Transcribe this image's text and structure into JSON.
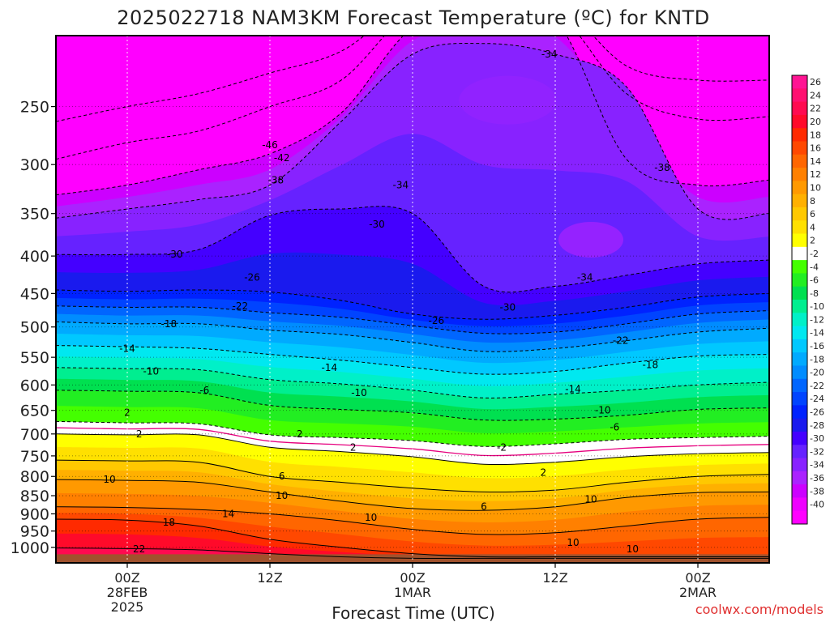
{
  "chart_data": {
    "type": "heatmap",
    "title": "2025022718 NAM3KM Forecast Temperature (ºC) for KNTD",
    "xlabel": "Forecast Time (UTC)",
    "ylabel": "",
    "credit": "coolwx.com/models",
    "y_scale": "log (pressure, hPa, inverted)",
    "ylim": [
      1050,
      200
    ],
    "yticks": [
      "250",
      "300",
      "350",
      "400",
      "450",
      "500",
      "550",
      "600",
      "650",
      "700",
      "750",
      "800",
      "850",
      "900",
      "950",
      "1000"
    ],
    "ytick_values": [
      250,
      300,
      350,
      400,
      450,
      500,
      550,
      600,
      650,
      700,
      750,
      800,
      850,
      900,
      950,
      1000
    ],
    "x_unit": "hours since 2025-02-27 18Z",
    "xlim": [
      0,
      60
    ],
    "xticks": [
      {
        "hour": 6,
        "lines": [
          "00Z",
          "28FEB",
          "2025"
        ]
      },
      {
        "hour": 18,
        "lines": [
          "12Z",
          "",
          ""
        ]
      },
      {
        "hour": 30,
        "lines": [
          "00Z",
          "1MAR",
          ""
        ]
      },
      {
        "hour": 42,
        "lines": [
          "12Z",
          "",
          ""
        ]
      },
      {
        "hour": 54,
        "lines": [
          "00Z",
          "2MAR",
          ""
        ]
      }
    ],
    "colorbar": {
      "labels": [
        "26",
        "24",
        "22",
        "20",
        "18",
        "16",
        "14",
        "12",
        "10",
        "8",
        "6",
        "4",
        "2",
        "-2",
        "-4",
        "-6",
        "-8",
        "-10",
        "-12",
        "-14",
        "-16",
        "-18",
        "-20",
        "-22",
        "-24",
        "-26",
        "-28",
        "-30",
        "-32",
        "-34",
        "-36",
        "-38",
        "-40"
      ],
      "colors": [
        "#ff1493",
        "#ff1070",
        "#ff0a50",
        "#ff0a2a",
        "#ff2a00",
        "#ff4800",
        "#ff6600",
        "#ff8000",
        "#ff9900",
        "#ffb000",
        "#ffc800",
        "#ffe000",
        "#ffff00",
        "#ffffff",
        "#44ff00",
        "#22ee22",
        "#00e050",
        "#00ee90",
        "#00f0c8",
        "#00e8f0",
        "#00c8ff",
        "#00aaff",
        "#008cff",
        "#0066ff",
        "#0044ff",
        "#0022ff",
        "#1a1aee",
        "#4400ff",
        "#6622ff",
        "#8822ff",
        "#aa22ff",
        "#cc00ff",
        "#ee00ff",
        "#ff00ff"
      ]
    },
    "time_hours": [
      0,
      6,
      12,
      18,
      24,
      30,
      36,
      42,
      48,
      54,
      60
    ],
    "isotherm_pressure_hPa": {
      "22": [
        1002,
        1004,
        1008,
        1020,
        1030,
        1035,
        1035,
        1035,
        1035,
        1035,
        1035
      ],
      "18": [
        915,
        918,
        935,
        975,
        1000,
        1020,
        1030,
        1030,
        1030,
        1030,
        1030
      ],
      "14": [
        880,
        882,
        888,
        900,
        920,
        945,
        960,
        955,
        935,
        915,
        910
      ],
      "10": [
        808,
        810,
        815,
        840,
        865,
        885,
        890,
        880,
        855,
        842,
        840
      ],
      "6": [
        760,
        762,
        765,
        800,
        815,
        830,
        840,
        835,
        815,
        800,
        795
      ],
      "2": [
        700,
        702,
        702,
        730,
        740,
        752,
        770,
        765,
        752,
        745,
        742
      ],
      "-2": [
        673,
        676,
        678,
        702,
        708,
        715,
        728,
        722,
        712,
        708,
        705
      ],
      "-6": [
        610,
        612,
        615,
        640,
        648,
        655,
        670,
        668,
        660,
        648,
        645
      ],
      "-10": [
        568,
        570,
        572,
        590,
        598,
        610,
        625,
        618,
        610,
        600,
        595
      ],
      "-14": [
        530,
        532,
        535,
        545,
        555,
        568,
        580,
        575,
        560,
        548,
        545
      ],
      "-18": [
        492,
        495,
        495,
        505,
        512,
        525,
        540,
        535,
        522,
        508,
        502
      ],
      "-22": [
        468,
        470,
        470,
        478,
        485,
        498,
        510,
        508,
        495,
        480,
        475
      ],
      "-26": [
        445,
        447,
        445,
        448,
        460,
        480,
        488,
        482,
        470,
        455,
        450
      ],
      "-30": [
        398,
        398,
        392,
        352,
        345,
        350,
        440,
        440,
        425,
        410,
        405
      ],
      "-34": [
        355,
        345,
        335,
        320,
        262,
        212,
        205,
        212,
        235,
        345,
        350
      ],
      "-38": [
        330,
        320,
        305,
        290,
        255,
        195,
        185,
        190,
        295,
        320,
        315
      ],
      "-42": [
        295,
        280,
        270,
        250,
        230,
        185,
        180,
        185,
        240,
        260,
        258
      ],
      "-46": [
        262,
        250,
        240,
        225,
        210,
        180,
        180,
        180,
        220,
        230,
        230
      ]
    },
    "contour_labels": [
      {
        "text": "-34",
        "hour": 41.5,
        "p": 212
      },
      {
        "text": "-46",
        "hour": 18,
        "p": 282
      },
      {
        "text": "-42",
        "hour": 19,
        "p": 294
      },
      {
        "text": "-38",
        "hour": 18.5,
        "p": 315
      },
      {
        "text": "-38",
        "hour": 51,
        "p": 303
      },
      {
        "text": "-34",
        "hour": 29,
        "p": 320
      },
      {
        "text": "-30",
        "hour": 27,
        "p": 362
      },
      {
        "text": "-30",
        "hour": 10,
        "p": 398
      },
      {
        "text": "-26",
        "hour": 16.5,
        "p": 428
      },
      {
        "text": "-34",
        "hour": 44.5,
        "p": 428
      },
      {
        "text": "-22",
        "hour": 15.5,
        "p": 468
      },
      {
        "text": "-30",
        "hour": 38,
        "p": 470
      },
      {
        "text": "-26",
        "hour": 32,
        "p": 490
      },
      {
        "text": "-18",
        "hour": 9.5,
        "p": 495
      },
      {
        "text": "-22",
        "hour": 47.5,
        "p": 522
      },
      {
        "text": "-14",
        "hour": 6,
        "p": 535
      },
      {
        "text": "-14",
        "hour": 23,
        "p": 568
      },
      {
        "text": "-18",
        "hour": 50,
        "p": 563
      },
      {
        "text": "-10",
        "hour": 8,
        "p": 575
      },
      {
        "text": "-10",
        "hour": 25.5,
        "p": 615
      },
      {
        "text": "-14",
        "hour": 43.5,
        "p": 608
      },
      {
        "text": "-6",
        "hour": 12.5,
        "p": 610
      },
      {
        "text": "-10",
        "hour": 46,
        "p": 650
      },
      {
        "text": "2",
        "hour": 6,
        "p": 655
      },
      {
        "text": "-6",
        "hour": 47,
        "p": 685
      },
      {
        "text": "2",
        "hour": 7,
        "p": 700
      },
      {
        "text": "2",
        "hour": 20.5,
        "p": 700
      },
      {
        "text": "2",
        "hour": 25,
        "p": 730
      },
      {
        "text": "-2",
        "hour": 37.5,
        "p": 730
      },
      {
        "text": "2",
        "hour": 41,
        "p": 790
      },
      {
        "text": "10",
        "hour": 4.5,
        "p": 808
      },
      {
        "text": "6",
        "hour": 19,
        "p": 800
      },
      {
        "text": "10",
        "hour": 19,
        "p": 850
      },
      {
        "text": "6",
        "hour": 36,
        "p": 880
      },
      {
        "text": "14",
        "hour": 14.5,
        "p": 900
      },
      {
        "text": "10",
        "hour": 45,
        "p": 860
      },
      {
        "text": "10",
        "hour": 26.5,
        "p": 910
      },
      {
        "text": "18",
        "hour": 9.5,
        "p": 925
      },
      {
        "text": "10",
        "hour": 43.5,
        "p": 985
      },
      {
        "text": "22",
        "hour": 7,
        "p": 1005
      },
      {
        "text": "10",
        "hour": 48.5,
        "p": 1005
      }
    ]
  }
}
